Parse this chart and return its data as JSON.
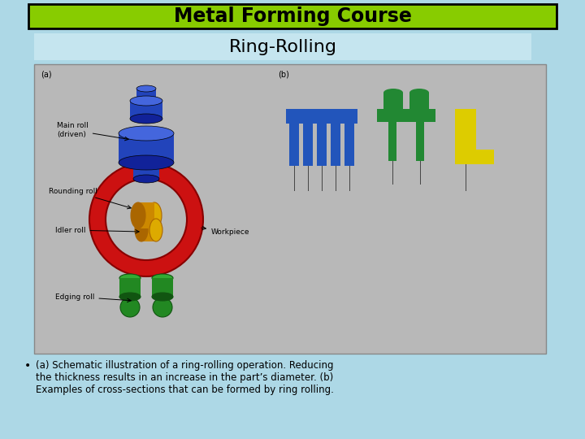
{
  "bg_color": "#add8e6",
  "title_bg_color": "#88cc00",
  "title_text": "Metal Forming Course",
  "title_text_color": "#000000",
  "subtitle_bg_color": "#c5e5ef",
  "subtitle_text": "Ring-Rolling",
  "subtitle_text_color": "#000000",
  "diagram_bg_color": "#b8b8b8",
  "diagram_border_color": "#888888",
  "bullet_text_line1": "(a) Schematic illustration of a ring-rolling operation. Reducing",
  "bullet_text_line2": "the thickness results in an increase in the part’s diameter. (b)",
  "bullet_text_line3": "Examples of cross-sections that can be formed by ring rolling.",
  "bullet_text_color": "#000000",
  "label_main_roll": "Main roll\n(driven)",
  "label_rounding_roll": "Rounding roll",
  "label_idler_roll": "Idler roll",
  "label_workpiece": "Workpiece",
  "label_edging_roll": "Edging roll",
  "label_a": "(a)",
  "label_b": "(b)",
  "blue_color": "#2244bb",
  "blue_dark": "#112299",
  "blue_light": "#4466dd",
  "red_color": "#cc1111",
  "red_dark": "#880000",
  "gold_color": "#cc8800",
  "gold_light": "#ddaa00",
  "gold_dark": "#aa6600",
  "green_color": "#228822",
  "green_dark": "#115511",
  "green_light": "#33aa33",
  "yellow_color": "#ddcc00",
  "cs_blue": "#2255bb",
  "cs_green": "#228833",
  "cs_yellow": "#ddcc00"
}
